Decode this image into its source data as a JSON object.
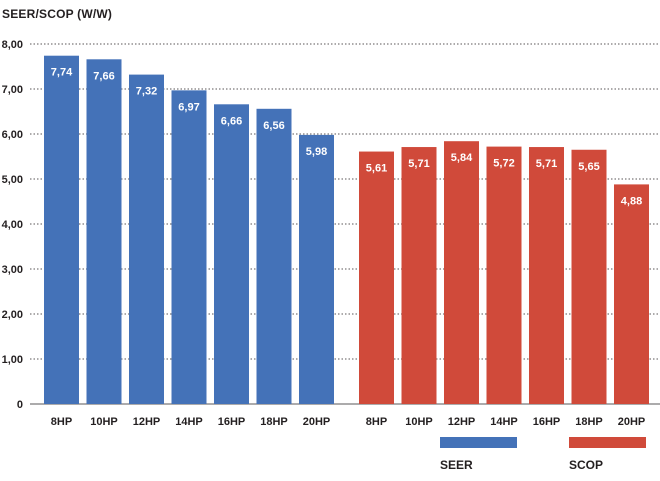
{
  "chart_data": {
    "type": "bar",
    "ylabel": "SEER/SCOP (W/W)",
    "xlabel": "",
    "ylim": [
      0,
      8
    ],
    "yticks": [
      0,
      1,
      2,
      3,
      4,
      5,
      6,
      7,
      8
    ],
    "ytick_labels": [
      "0",
      "1,00",
      "2,00",
      "3,00",
      "4,00",
      "5,00",
      "6,00",
      "7,00",
      "8,00"
    ],
    "grid": true,
    "legend_position": "bottom",
    "series": [
      {
        "name": "SEER",
        "color": "#4472b8",
        "categories": [
          "8HP",
          "10HP",
          "12HP",
          "14HP",
          "16HP",
          "18HP",
          "20HP"
        ],
        "values": [
          7.74,
          7.66,
          7.32,
          6.97,
          6.66,
          6.56,
          5.98
        ],
        "labels": [
          "7,74",
          "7,66",
          "7,32",
          "6,97",
          "6,66",
          "6,56",
          "5,98"
        ]
      },
      {
        "name": "SCOP",
        "color": "#d04a3a",
        "categories": [
          "8HP",
          "10HP",
          "12HP",
          "14HP",
          "16HP",
          "18HP",
          "20HP"
        ],
        "values": [
          5.61,
          5.71,
          5.84,
          5.72,
          5.71,
          5.65,
          4.88
        ],
        "labels": [
          "5,61",
          "5,71",
          "5,84",
          "5,72",
          "5,71",
          "5,65",
          "4,88"
        ]
      }
    ]
  }
}
